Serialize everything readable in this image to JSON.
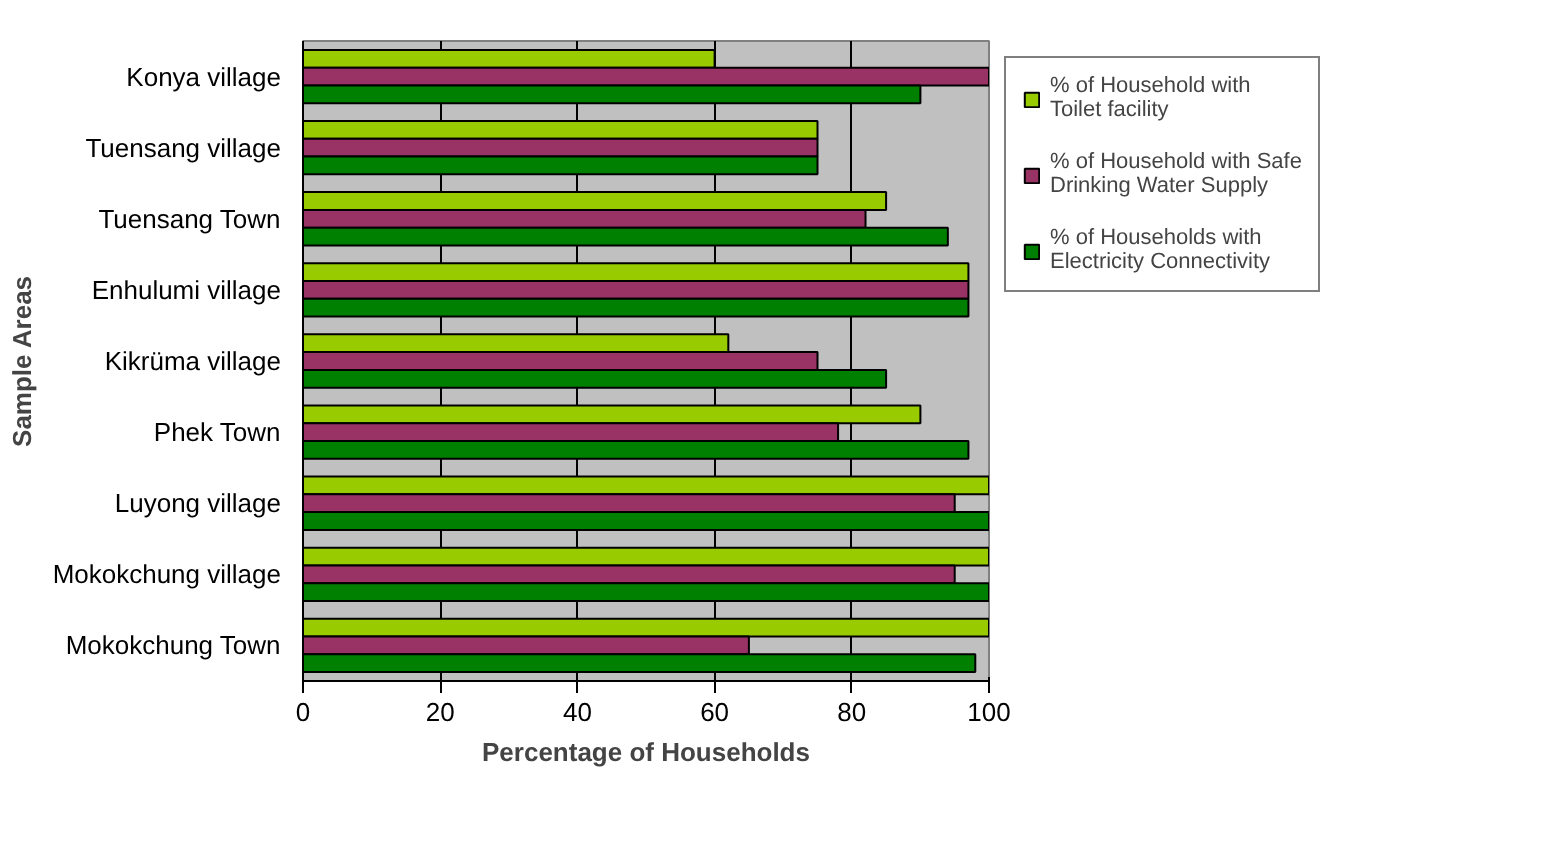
{
  "chart_data": {
    "type": "bar",
    "orientation": "horizontal",
    "xlabel": "Percentage of Households",
    "ylabel": "Sample Areas",
    "categories": [
      "Konya village",
      "Tuensang village",
      "Tuensang Town",
      "Enhulumi village",
      "Kikrüma village",
      "Phek Town",
      "Luyong village",
      "Mokokchung village",
      "Mokokchung Town"
    ],
    "series": [
      {
        "name": "% of Household with Toilet facility",
        "color": "#99cc00",
        "values": [
          60,
          75,
          85,
          97,
          62,
          90,
          100,
          100,
          100
        ]
      },
      {
        "name": "% of Household with Safe Drinking Water Supply",
        "color": "#993366",
        "values": [
          100,
          75,
          82,
          97,
          75,
          78,
          95,
          95,
          65
        ]
      },
      {
        "name": "% of Households with Electricity Connectivity",
        "color": "#008000",
        "values": [
          90,
          75,
          94,
          97,
          85,
          97,
          100,
          100,
          98
        ]
      }
    ],
    "xlim": [
      0,
      100
    ],
    "xticks": [
      0,
      20,
      40,
      60,
      80,
      100
    ],
    "grid": "x",
    "legend": "right"
  }
}
